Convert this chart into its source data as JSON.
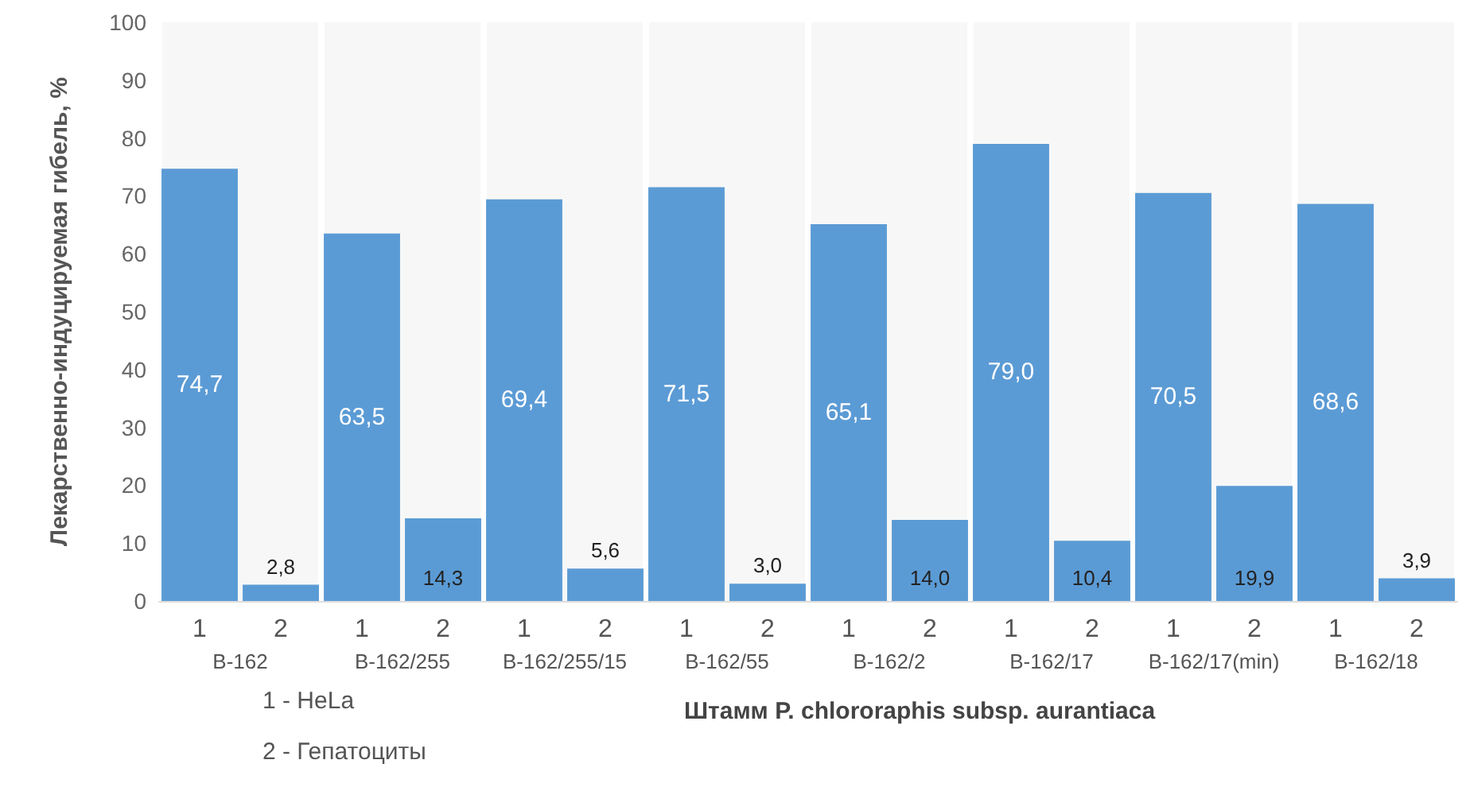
{
  "chart_data": {
    "type": "bar",
    "ylabel": "Лекарственно-индуцируемая гибель, %",
    "xlabel": "Штамм P. chlororaphis subsp. aurantiaca",
    "categories": [
      "1",
      "2",
      "1",
      "2",
      "1",
      "2",
      "1",
      "2",
      "1",
      "2",
      "1",
      "2",
      "1",
      "2",
      "1",
      "2"
    ],
    "values": [
      74.7,
      2.8,
      63.5,
      14.3,
      69.4,
      5.6,
      71.5,
      3.0,
      65.1,
      14.0,
      79.0,
      10.4,
      70.5,
      19.9,
      68.6,
      3.9
    ],
    "value_labels": [
      "74,7",
      "2,8",
      "63,5",
      "14,3",
      "69,4",
      "5,6",
      "71,5",
      "3,0",
      "65,1",
      "14,0",
      "79,0",
      "10,4",
      "70,5",
      "19,9",
      "68,6",
      "3,9"
    ],
    "color": "#5b9bd5",
    "ylim": [
      0,
      100
    ],
    "yticks": [
      0,
      10,
      20,
      30,
      40,
      50,
      60,
      70,
      80,
      90,
      100
    ],
    "grid": false,
    "annotations": [
      "B-162",
      "B-162/255",
      "B-162/255/15",
      "B-162/55",
      "B-162/2",
      "B-162/17",
      "B-162/17(min)",
      "B-162/18",
      "1 - HeLa",
      "2 - Гепатоциты"
    ]
  }
}
